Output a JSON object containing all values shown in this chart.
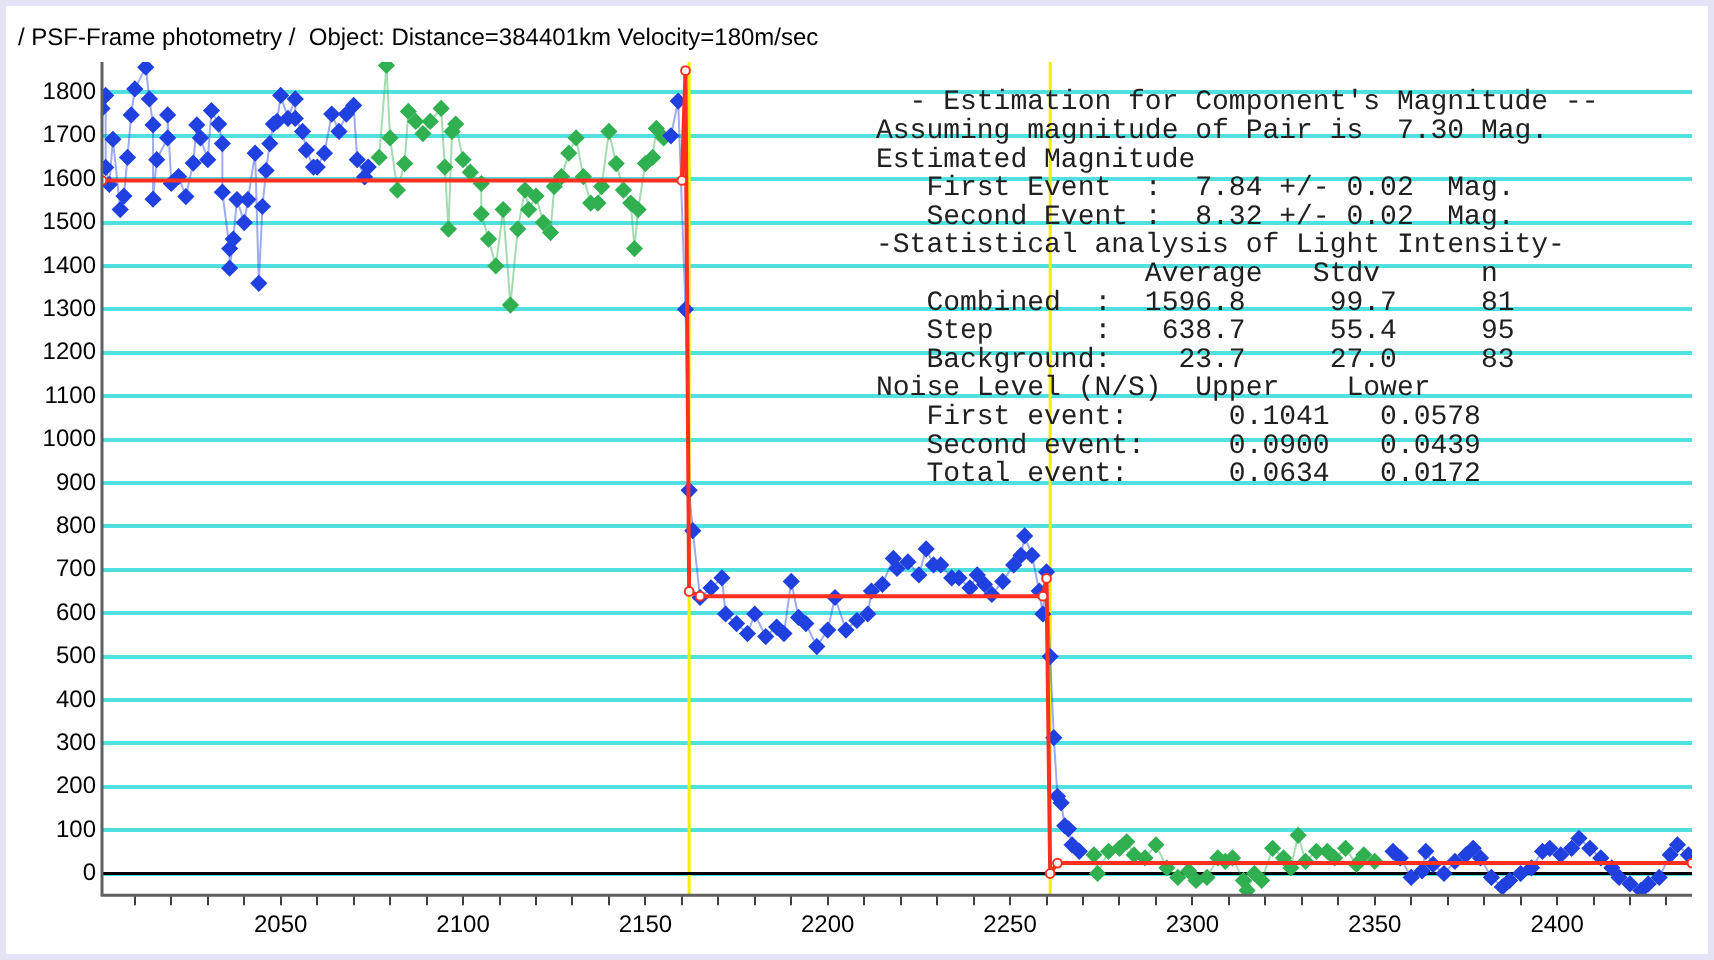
{
  "chart_data": {
    "type": "line",
    "title": "/ PSF-Frame photometry /  Object: Distance=384401km Velocity=180m/sec",
    "annotations": [
      "  - Estimation for Component's Magnitude --",
      "Assuming magnitude of Pair is  7.30 Mag.",
      "Estimated Magnitude",
      "   First Event  :  7.84 +/- 0.02  Mag.",
      "   Second Event :  8.32 +/- 0.02  Mag.",
      "-Statistical analysis of Light Intensity-",
      "                Average   Stdv      n",
      "   Combined  :  1596.8     99.7     81",
      "   Step      :   638.7     55.4     95",
      "   Background:    23.7     27.0     83",
      "Noise Level (N/S)  Upper    Lower",
      "   First event:      0.1041   0.0578",
      "   Second event:     0.0900   0.0439",
      "   Total event:      0.0634   0.0172"
    ],
    "series": [
      {
        "color": "#2040e0",
        "marker": "diamond",
        "x": [
          2001,
          2002,
          2002,
          2003,
          2004,
          2006,
          2007,
          2008,
          2009,
          2010,
          2013,
          2014,
          2015,
          2015,
          2016,
          2019,
          2019,
          2020,
          2022,
          2024,
          2026,
          2027,
          2028,
          2030,
          2031,
          2033,
          2034,
          2034,
          2036,
          2036,
          2037,
          2038,
          2040,
          2041,
          2043,
          2044,
          2045,
          2046,
          2047,
          2048,
          2049,
          2050,
          2052,
          2054,
          2054,
          2056,
          2057,
          2059,
          2060,
          2062,
          2064,
          2066,
          2068,
          2070,
          2071,
          2073,
          2074,
          2075,
          2157,
          2159,
          2161,
          2162,
          2163,
          2165,
          2168,
          2171,
          2172,
          2175,
          2178,
          2180,
          2183,
          2186,
          2188,
          2190,
          2192,
          2194,
          2197,
          2200,
          2202,
          2205,
          2208,
          2211,
          2212,
          2215,
          2218,
          2219,
          2222,
          2225,
          2227,
          2229,
          2231,
          2234,
          2236,
          2239,
          2241,
          2243,
          2245,
          2248,
          2251,
          2253,
          2254,
          2256,
          2258,
          2259,
          2260,
          2261,
          2262,
          2263,
          2264,
          2265,
          2266,
          2267,
          2269,
          2352,
          2355,
          2357,
          2360,
          2363,
          2364,
          2366,
          2369,
          2372,
          2375,
          2377,
          2379,
          2382,
          2385,
          2387,
          2390,
          2393,
          2396,
          2398,
          2401,
          2404,
          2406,
          2409,
          2412,
          2415,
          2417,
          2420,
          2423,
          2425,
          2428,
          2431,
          2433,
          2436
        ],
        "values": [
          1763,
          1793,
          1627,
          1588,
          1692,
          1530,
          1561,
          1650,
          1748,
          1808,
          1858,
          1785,
          1725,
          1554,
          1645,
          1695,
          1748,
          1590,
          1606,
          1560,
          1637,
          1725,
          1695,
          1645,
          1758,
          1727,
          1682,
          1570,
          1440,
          1395,
          1462,
          1553,
          1500,
          1553,
          1660,
          1360,
          1537,
          1620,
          1682,
          1727,
          1733,
          1793,
          1740,
          1785,
          1740,
          1710,
          1667,
          1628,
          1628,
          1660,
          1750,
          1710,
          1750,
          1770,
          1645,
          1605,
          1628,
          null,
          1700,
          1780,
          1300,
          883,
          790,
          636,
          658,
          681,
          598,
          576,
          553,
          598,
          546,
          568,
          553,
          673,
          590,
          576,
          523,
          561,
          636,
          561,
          583,
          598,
          651,
          666,
          726,
          703,
          718,
          688,
          748,
          711,
          711,
          681,
          681,
          658,
          688,
          666,
          643,
          673,
          711,
          733,
          778,
          733,
          651,
          598,
          695,
          500,
          313,
          178,
          163,
          110,
          103,
          66,
          51,
          null,
          51,
          36,
          -9,
          6,
          51,
          21,
          0,
          28,
          43,
          58,
          36,
          -9,
          -31,
          -16,
          0,
          13,
          51,
          58,
          43,
          58,
          81,
          58,
          36,
          13,
          -9,
          -24,
          -39,
          -24,
          -9,
          43,
          66,
          43
        ]
      },
      {
        "color": "#30b050",
        "marker": "diamond",
        "x": [
          2077,
          2079,
          2080,
          2082,
          2084,
          2085,
          2087,
          2089,
          2091,
          2094,
          2095,
          2096,
          2097,
          2098,
          2100,
          2102,
          2105,
          2105,
          2107,
          2109,
          2111,
          2113,
          2115,
          2117,
          2118,
          2120,
          2122,
          2124,
          2125,
          2127,
          2129,
          2131,
          2133,
          2135,
          2137,
          2138,
          2140,
          2142,
          2144,
          2146,
          2147,
          2148,
          2150,
          2152,
          2153,
          2155,
          2200,
          2273,
          2274,
          2277,
          2280,
          2282,
          2284,
          2287,
          2290,
          2293,
          2296,
          2299,
          2301,
          2304,
          2307,
          2309,
          2311,
          2314,
          2315,
          2317,
          2319,
          2322,
          2325,
          2327,
          2329,
          2331,
          2334,
          2337,
          2339,
          2342,
          2345,
          2347,
          2350
        ],
        "values": [
          1650,
          1862,
          1695,
          1575,
          1636,
          1756,
          1733,
          1705,
          1733,
          1763,
          1628,
          1485,
          1710,
          1727,
          1645,
          1616,
          1590,
          1520,
          1462,
          1400,
          1530,
          1310,
          1485,
          1575,
          1530,
          1561,
          1500,
          1477,
          1583,
          1606,
          1660,
          1695,
          1606,
          1545,
          1545,
          1583,
          1710,
          1636,
          1575,
          1545,
          1440,
          1530,
          1636,
          1650,
          1717,
          1695,
          null,
          43,
          0,
          51,
          58,
          73,
          43,
          36,
          66,
          13,
          -9,
          6,
          -16,
          -9,
          36,
          28,
          36,
          -16,
          -39,
          0,
          -16,
          58,
          36,
          13,
          88,
          28,
          51,
          51,
          36,
          58,
          21,
          43,
          28
        ]
      },
      {
        "color": "#ff3020",
        "marker": "circle",
        "x": [
          2001,
          2160,
          2161,
          2162,
          2165,
          2259,
          2260,
          2261,
          2263,
          2437
        ],
        "values": [
          1597,
          1597,
          1850,
          650,
          639,
          639,
          680,
          0,
          24,
          24
        ]
      }
    ],
    "xlim": [
      2001,
      2437
    ],
    "ylim": [
      -50,
      1870
    ],
    "xticks": [
      {
        "value": 2010,
        "label": null
      },
      {
        "value": 2020,
        "label": null
      },
      {
        "value": 2030,
        "label": null
      },
      {
        "value": 2040,
        "label": null
      },
      2050,
      {
        "value": 2060,
        "label": null
      },
      {
        "value": 2070,
        "label": null
      },
      {
        "value": 2080,
        "label": null
      },
      {
        "value": 2090,
        "label": null
      },
      2100,
      {
        "value": 2110,
        "label": null
      },
      {
        "value": 2120,
        "label": null
      },
      {
        "value": 2130,
        "label": null
      },
      {
        "value": 2140,
        "label": null
      },
      2150,
      {
        "value": 2160,
        "label": null
      },
      {
        "value": 2170,
        "label": null
      },
      {
        "value": 2180,
        "label": null
      },
      {
        "value": 2190,
        "label": null
      },
      2200,
      {
        "value": 2210,
        "label": null
      },
      {
        "value": 2220,
        "label": null
      },
      {
        "value": 2230,
        "label": null
      },
      {
        "value": 2240,
        "label": null
      },
      2250,
      {
        "value": 2260,
        "label": null
      },
      {
        "value": 2270,
        "label": null
      },
      {
        "value": 2280,
        "label": null
      },
      {
        "value": 2290,
        "label": null
      },
      2300,
      {
        "value": 2310,
        "label": null
      },
      {
        "value": 2320,
        "label": null
      },
      {
        "value": 2330,
        "label": null
      },
      {
        "value": 2340,
        "label": null
      },
      2350,
      {
        "value": 2360,
        "label": null
      },
      {
        "value": 2370,
        "label": null
      },
      {
        "value": 2380,
        "label": null
      },
      {
        "value": 2390,
        "label": null
      },
      2400,
      {
        "value": 2410,
        "label": null
      },
      {
        "value": 2420,
        "label": null
      },
      {
        "value": 2430,
        "label": null
      }
    ],
    "yticks": [
      0,
      100,
      200,
      300,
      400,
      500,
      600,
      700,
      800,
      900,
      1000,
      1100,
      1200,
      1300,
      1400,
      1500,
      1600,
      1700,
      1800
    ],
    "grid": "y",
    "legend": false,
    "ref_lines": [
      {
        "axis": "x",
        "value": 2162,
        "color": "#f0f000"
      },
      {
        "axis": "x",
        "value": 2261,
        "color": "#f0f000"
      },
      {
        "axis": "y",
        "value": 0,
        "color": "#000000"
      }
    ]
  }
}
